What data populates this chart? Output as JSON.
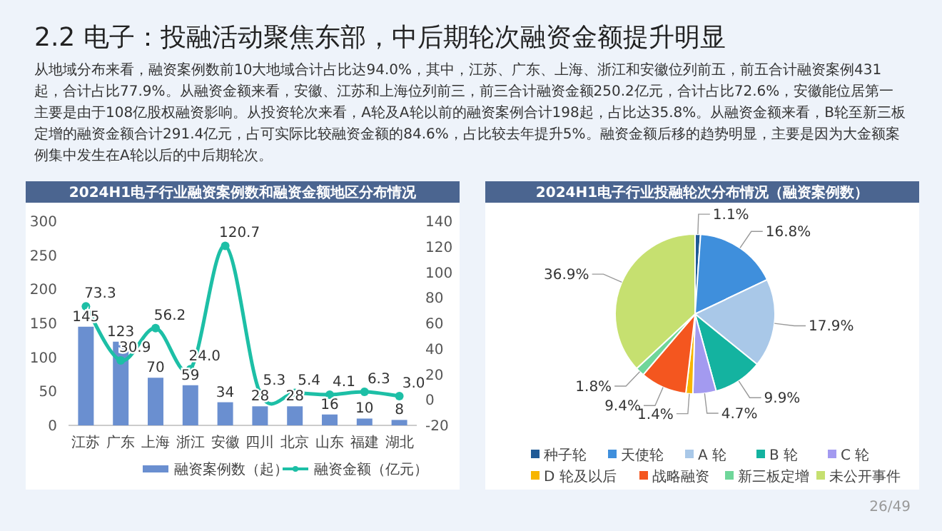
{
  "chart_data": [
    {
      "type": "other",
      "title": "2.2 电子：投融活动聚焦东部，中后期轮次融资金额提升明显",
      "annotations": [
        "从地域分布来看，融资案例数前10大地域合计占比达94.0%，其中，江苏、广东、上海、浙江和安徽位列前五，前五合计融资案例431起，合计占比77.9%。从融资金额来看，安徽、江苏和上海位列前三，前三合计融资金额250.2亿元，合计占比72.6%，安徽能位居第一主要是由于108亿股权融资影响。从投资轮次来看，A轮及A轮以前的融资案例合计198起，占比达35.8%。从融资金额来看，B轮至新三板定增的融资金额合计291.4亿元，占可实际比较融资金额的84.6%，占比较去年提升5%。融资金额后移的趋势明显，主要是因为大金额案例集中发生在A轮以后的中后期轮次。",
        "26/49"
      ]
    },
    {
      "type": "bar",
      "title": "2024H1电子行业融资案例数和融资金额地区分布情况",
      "categories": [
        "江苏",
        "广东",
        "上海",
        "浙江",
        "安徽",
        "四川",
        "北京",
        "山东",
        "福建",
        "湖北"
      ],
      "series": [
        {
          "name": "融资案例数（起）",
          "color": "#6a8fd0",
          "values": [
            145,
            123,
            70,
            59,
            34,
            28,
            28,
            16,
            10,
            8
          ]
        },
        {
          "name": "融资金额（亿元）",
          "type": "line",
          "axis": "y2",
          "color": "#1dbfa6",
          "marker": "circle",
          "values": [
            73.3,
            30.9,
            56.2,
            24.0,
            120.7,
            5.3,
            5.4,
            4.1,
            6.3,
            3.0
          ],
          "value_labels": [
            "73.3",
            "30.9",
            "56.2",
            "24.0",
            "120.7",
            "5.3",
            "5.4",
            "4.1",
            "6.3",
            "3.0"
          ]
        }
      ],
      "ylim": [
        0,
        300
      ],
      "yticks": [
        0,
        50,
        100,
        150,
        200,
        250,
        300
      ],
      "y2lim": [
        -20,
        140
      ],
      "y2ticks": [
        -20,
        0,
        20,
        40,
        60,
        80,
        100,
        120,
        140
      ],
      "data_labels": true,
      "legend": "bottom",
      "grid": false
    },
    {
      "type": "pie",
      "title": "2024H1电子行业投融轮次分布情况（融资案例数）",
      "categories": [
        "种子轮",
        "天使轮",
        "A 轮",
        "B 轮",
        "C 轮",
        "D 轮及以后",
        "战略融资",
        "新三板定增",
        "未公开事件"
      ],
      "values": [
        1.1,
        16.8,
        17.9,
        9.9,
        4.7,
        1.4,
        9.4,
        1.8,
        36.9
      ],
      "value_labels": [
        "1.1%",
        "16.8%",
        "17.9%",
        "9.9%",
        "4.7%",
        "1.4%",
        "9.4%",
        "1.8%",
        "36.9%"
      ],
      "colors": [
        "#1f5a96",
        "#3f8fdc",
        "#a9c8e8",
        "#14b3a0",
        "#a39af0",
        "#f7b500",
        "#f4561f",
        "#6fd69a",
        "#c6e070"
      ],
      "legend": "bottom"
    }
  ]
}
